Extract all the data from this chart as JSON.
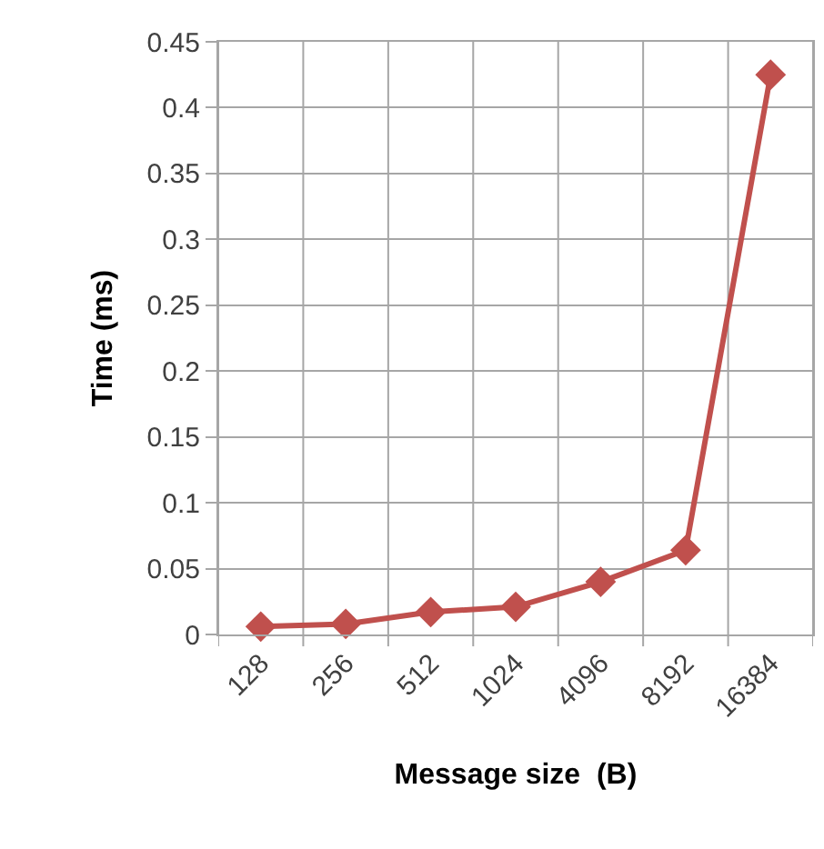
{
  "chart_data": {
    "type": "line",
    "xlabel": "Message size  (B)",
    "ylabel": "Time (ms)",
    "categories": [
      "128",
      "256",
      "512",
      "1024",
      "4096",
      "8192",
      "16384"
    ],
    "series": [
      {
        "color": "#c0504d",
        "values": [
          0.006,
          0.008,
          0.017,
          0.021,
          0.04,
          0.064,
          0.425
        ]
      }
    ],
    "ylim": [
      0,
      0.45
    ],
    "yticks": [
      0,
      0.05,
      0.1,
      0.15,
      0.2,
      0.25,
      0.3,
      0.35,
      0.4,
      0.45
    ],
    "grid": true,
    "marker": "diamond",
    "line_style": "solid"
  }
}
